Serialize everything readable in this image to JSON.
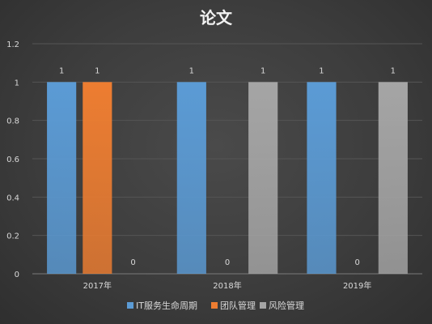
{
  "chart_data": {
    "type": "bar",
    "title": "论文",
    "categories": [
      "2017年",
      "2018年",
      "2019年"
    ],
    "series": [
      {
        "name": "IT服务生命周期",
        "values": [
          1,
          1,
          1
        ],
        "color": "#5b9bd5"
      },
      {
        "name": "团队管理",
        "values": [
          1,
          0,
          0
        ],
        "color": "#ed7d31"
      },
      {
        "name": "风险管理",
        "values": [
          0,
          1,
          1
        ],
        "color": "#a5a5a5"
      }
    ],
    "ylim": [
      0,
      1.2
    ],
    "yticks": [
      "0",
      "0.2",
      "0.4",
      "0.6",
      "0.8",
      "1",
      "1.2"
    ],
    "grid": true,
    "data_labels": true,
    "legend": "bottom"
  }
}
